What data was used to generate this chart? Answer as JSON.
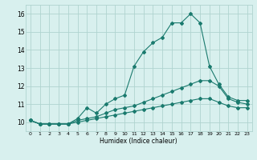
{
  "xlabel": "Humidex (Indice chaleur)",
  "x": [
    0,
    1,
    2,
    3,
    4,
    5,
    6,
    7,
    8,
    9,
    10,
    11,
    12,
    13,
    14,
    15,
    16,
    17,
    18,
    19,
    20,
    21,
    22,
    23
  ],
  "line1": [
    10.1,
    9.9,
    9.9,
    9.9,
    9.9,
    10.2,
    10.8,
    10.5,
    11.0,
    11.3,
    11.5,
    13.1,
    13.9,
    14.4,
    14.7,
    15.5,
    15.5,
    16.0,
    15.5,
    13.1,
    12.1,
    11.4,
    11.2,
    11.2
  ],
  "line2": [
    10.1,
    9.9,
    9.9,
    9.9,
    9.9,
    10.1,
    10.2,
    10.3,
    10.5,
    10.7,
    10.8,
    10.9,
    11.1,
    11.3,
    11.5,
    11.7,
    11.9,
    12.1,
    12.3,
    12.3,
    12.0,
    11.3,
    11.1,
    11.0
  ],
  "line3": [
    10.1,
    9.9,
    9.9,
    9.9,
    9.9,
    10.0,
    10.1,
    10.2,
    10.3,
    10.4,
    10.5,
    10.6,
    10.7,
    10.8,
    10.9,
    11.0,
    11.1,
    11.2,
    11.3,
    11.3,
    11.1,
    10.9,
    10.8,
    10.8
  ],
  "line_color": "#1a7a6e",
  "bg_color": "#d8f0ee",
  "grid_color": "#b0d4d0",
  "ylim": [
    9.5,
    16.5
  ],
  "yticks": [
    10,
    11,
    12,
    13,
    14,
    15,
    16
  ],
  "xlim": [
    -0.5,
    23.5
  ]
}
